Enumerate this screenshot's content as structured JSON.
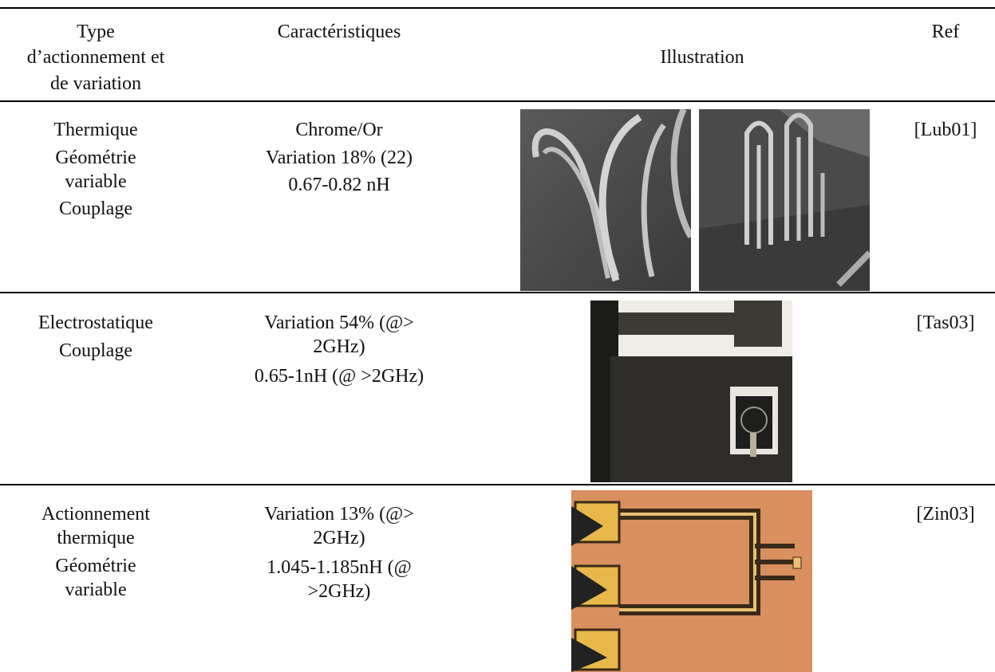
{
  "header": {
    "cells": [
      [
        [
          "Type",
          "d’actionnement et",
          "de variation"
        ]
      ],
      [
        [
          "Caractéristiques"
        ]
      ],
      [
        [
          "Illustration"
        ]
      ],
      [
        [
          "Ref"
        ]
      ]
    ]
  },
  "rows": [
    {
      "type": [
        [
          "Thermique"
        ],
        [
          "Géométrie",
          "variable"
        ],
        [
          "Couplage"
        ]
      ],
      "characteristics": [
        [
          "Chrome/Or"
        ],
        [
          "Variation 18% (22)"
        ],
        [
          "0.67-0.82 nH"
        ]
      ],
      "ref": "[Lub01]"
    },
    {
      "type": [
        [
          "Electrostatique"
        ],
        [
          "Couplage"
        ]
      ],
      "characteristics": [
        [
          "Variation 54% (@>",
          "2GHz)"
        ],
        [
          "0.65-1nH (@ >2GHz)"
        ]
      ],
      "ref": "[Tas03]"
    },
    {
      "type": [
        [
          "Actionnement",
          "thermique"
        ],
        [
          "Géométrie",
          "variable"
        ]
      ],
      "characteristics": [
        [
          "Variation 13% (@>",
          "2GHz)"
        ],
        [
          "1.045-1.185nH (@",
          ">2GHz)"
        ]
      ],
      "ref": "[Zin03]"
    }
  ]
}
